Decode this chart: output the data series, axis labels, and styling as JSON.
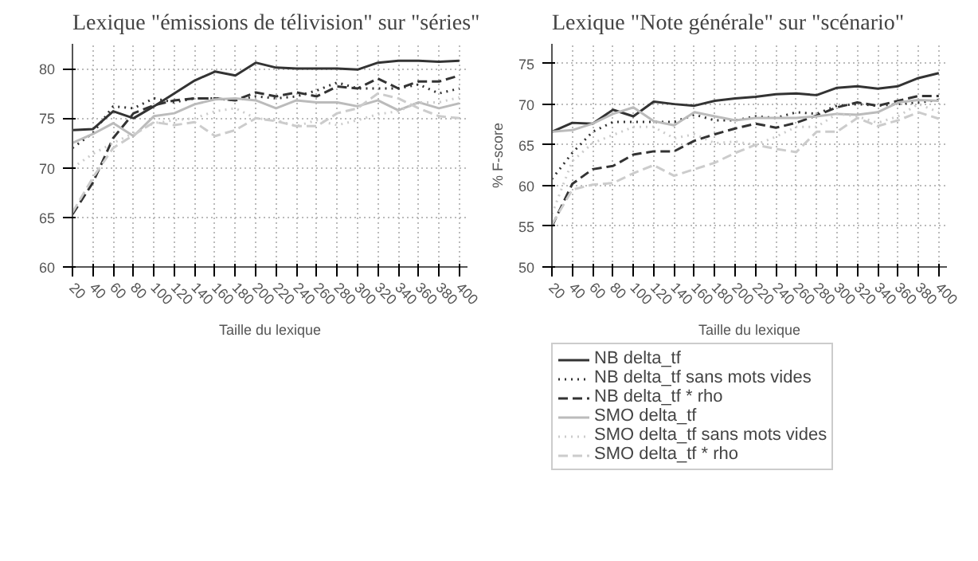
{
  "chart_data": [
    {
      "type": "line",
      "title": "Lexique \"émissions de télivision\" sur \"séries\"",
      "xlabel": "Taille du lexique",
      "x": [
        20,
        40,
        60,
        80,
        100,
        120,
        140,
        160,
        180,
        200,
        220,
        240,
        260,
        280,
        300,
        320,
        340,
        360,
        380,
        400
      ],
      "xlim": [
        20,
        408
      ],
      "xticks": [
        20,
        40,
        60,
        80,
        100,
        120,
        140,
        160,
        180,
        200,
        220,
        240,
        260,
        280,
        300,
        320,
        340,
        360,
        380,
        400
      ],
      "ylim": [
        60,
        82.5
      ],
      "yticks": [
        60,
        65,
        70,
        75,
        80
      ],
      "grid": true,
      "legend": false,
      "marker": "none",
      "series": [
        {
          "color": "#333333",
          "line_style": "solid",
          "values": [
            73.8,
            73.9,
            75.7,
            75.0,
            76.2,
            77.5,
            78.8,
            79.7,
            79.3,
            80.6,
            80.1,
            80.0,
            80.0,
            80.0,
            79.9,
            80.6,
            80.8,
            80.8,
            80.7,
            80.8
          ]
        },
        {
          "color": "#333333",
          "line_style": "dotted",
          "values": [
            72.0,
            73.5,
            76.2,
            76.0,
            77.0,
            76.6,
            77.0,
            77.0,
            76.8,
            77.2,
            77.0,
            77.2,
            77.8,
            78.6,
            78.0,
            78.0,
            78.0,
            78.4,
            77.5,
            78.0
          ]
        },
        {
          "color": "#333333",
          "line_style": "dashed",
          "values": [
            65.3,
            68.5,
            73.0,
            75.5,
            76.3,
            76.8,
            77.0,
            77.0,
            76.8,
            77.6,
            77.2,
            77.6,
            77.2,
            78.2,
            78.0,
            79.0,
            78.0,
            78.7,
            78.7,
            79.3
          ]
        },
        {
          "color": "#bbbbbb",
          "line_style": "solid",
          "values": [
            72.5,
            73.4,
            74.5,
            73.2,
            75.2,
            75.5,
            76.4,
            76.9,
            77.0,
            76.8,
            76.0,
            76.8,
            76.6,
            76.6,
            76.2,
            76.8,
            75.8,
            76.6,
            76.0,
            76.5
          ]
        },
        {
          "color": "#cccccc",
          "line_style": "dotted",
          "values": [
            70.0,
            71.4,
            72.5,
            73.5,
            74.5,
            74.8,
            75.0,
            75.7,
            76.0,
            75.0,
            74.8,
            74.2,
            74.8,
            74.3,
            74.8,
            75.4,
            75.7,
            76.6,
            76.6,
            77.1
          ]
        },
        {
          "color": "#cccccc",
          "line_style": "dashed",
          "values": [
            65.5,
            69.0,
            72.0,
            73.3,
            74.6,
            74.3,
            74.6,
            73.2,
            73.8,
            75.0,
            74.7,
            74.2,
            74.2,
            75.5,
            76.0,
            77.5,
            77.0,
            76.0,
            75.2,
            75.0
          ]
        }
      ]
    },
    {
      "type": "line",
      "title": "Lexique \"Note générale\" sur \"scénario\"",
      "xlabel": "Taille du lexique",
      "ylabel": "% F-score",
      "x": [
        20,
        40,
        60,
        80,
        100,
        120,
        140,
        160,
        180,
        200,
        220,
        240,
        260,
        280,
        300,
        320,
        340,
        360,
        380,
        400
      ],
      "xlim": [
        20,
        408
      ],
      "xticks": [
        20,
        40,
        60,
        80,
        100,
        120,
        140,
        160,
        180,
        200,
        220,
        240,
        260,
        280,
        300,
        320,
        340,
        360,
        380,
        400
      ],
      "ylim": [
        50,
        77.4
      ],
      "yticks": [
        50,
        55,
        60,
        65,
        70,
        75
      ],
      "grid": true,
      "legend": "bottom",
      "marker": "none",
      "series": [
        {
          "name": "NB delta_tf",
          "color": "#333333",
          "line_style": "solid",
          "values": [
            66.6,
            67.7,
            67.6,
            69.3,
            68.5,
            70.3,
            70.0,
            69.8,
            70.4,
            70.7,
            70.9,
            71.2,
            71.3,
            71.1,
            72.0,
            72.2,
            71.9,
            72.2,
            73.2,
            73.8
          ]
        },
        {
          "name": "NB delta_tf sans mots vides",
          "color": "#333333",
          "line_style": "dotted",
          "values": [
            60.8,
            64.0,
            66.6,
            67.8,
            67.8,
            67.8,
            67.8,
            68.7,
            68.0,
            68.0,
            68.5,
            68.3,
            69.0,
            68.8,
            69.8,
            70.0,
            69.8,
            70.0,
            70.2,
            70.5
          ]
        },
        {
          "name": "NB delta_tf * rho",
          "color": "#333333",
          "line_style": "dashed",
          "values": [
            55.0,
            60.2,
            62.0,
            62.4,
            63.8,
            64.2,
            64.2,
            65.5,
            66.3,
            67.0,
            67.6,
            67.1,
            67.7,
            68.6,
            69.6,
            70.2,
            69.8,
            70.4,
            71.0,
            71.0
          ]
        },
        {
          "name": "SMO delta_tf",
          "color": "#bbbbbb",
          "line_style": "solid",
          "values": [
            66.6,
            66.8,
            67.6,
            68.8,
            69.6,
            67.9,
            67.4,
            69.0,
            68.5,
            68.0,
            68.3,
            68.3,
            68.3,
            68.5,
            68.8,
            68.7,
            69.0,
            70.2,
            70.5,
            70.4
          ]
        },
        {
          "name": "SMO delta_tf sans mots vides",
          "color": "#cccccc",
          "line_style": "dotted",
          "values": [
            56.5,
            63.0,
            65.2,
            66.2,
            67.2,
            67.2,
            65.8,
            66.3,
            65.2,
            65.4,
            65.0,
            66.0,
            67.2,
            67.2,
            68.8,
            68.5,
            67.7,
            68.5,
            70.0,
            69.0
          ]
        },
        {
          "name": "SMO delta_tf * rho",
          "color": "#cccccc",
          "line_style": "dashed",
          "values": [
            55.2,
            59.5,
            60.1,
            60.3,
            61.5,
            62.5,
            61.2,
            62.0,
            62.8,
            64.0,
            65.0,
            64.5,
            64.1,
            66.6,
            66.6,
            68.3,
            67.3,
            68.0,
            69.0,
            68.2
          ]
        }
      ]
    }
  ]
}
